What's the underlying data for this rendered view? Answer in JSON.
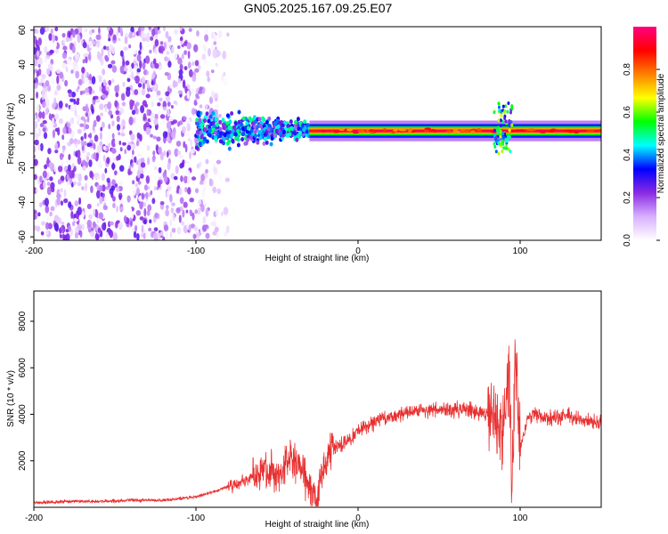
{
  "title": "GN05.2025.167.09.25.E07",
  "chart_data": [
    {
      "type": "heatmap",
      "xlabel": "Height of straight line (km)",
      "ylabel": "Frequency (Hz)",
      "xlim": [
        -200,
        150
      ],
      "ylim": [
        -62,
        62
      ],
      "xticks": [
        -200,
        -100,
        0,
        100
      ],
      "yticks": [
        -60,
        -40,
        -20,
        0,
        20,
        40,
        60
      ],
      "colorbar": {
        "label": "Normalized spectral amplitude",
        "range": [
          0,
          1
        ],
        "ticks": [
          "0.0",
          "0.2",
          "0.4",
          "0.6",
          "0.8"
        ],
        "colormap": [
          "#ffffff",
          "#d8b0ff",
          "#8a2be2",
          "#0000ff",
          "#00ffff",
          "#00ff00",
          "#ffff00",
          "#ff8000",
          "#ff0000",
          "#ff0080"
        ]
      },
      "features": [
        {
          "region": "noise",
          "x_range": [
            -200,
            -80
          ],
          "freq_range": [
            -62,
            62
          ],
          "amplitude": 0.12
        },
        {
          "region": "tone-start",
          "x_range": [
            -100,
            -30
          ],
          "freq_center": 2,
          "freq_spread": 8,
          "amplitude": 0.4
        },
        {
          "region": "tone",
          "x_range": [
            -30,
            150
          ],
          "freq_center": 1.5,
          "freq_spread": 2,
          "amplitude": 0.95
        },
        {
          "region": "spike",
          "x_range": [
            84,
            95
          ],
          "freq_range": [
            -12,
            18
          ],
          "amplitude": 0.45
        }
      ]
    },
    {
      "type": "line",
      "xlabel": "Height of straight line (km)",
      "ylabel": "SNR (10 * v/v)",
      "xlim": [
        -200,
        150
      ],
      "ylim": [
        0,
        9300
      ],
      "xticks": [
        -200,
        -100,
        0,
        100
      ],
      "yticks": [
        2000,
        4000,
        6000,
        8000
      ],
      "color": "#e83030",
      "series": [
        {
          "x": [
            -200,
            -180,
            -160,
            -140,
            -120,
            -100,
            -90,
            -80,
            -70,
            -65,
            -60,
            -55,
            -50,
            -45,
            -40,
            -35,
            -30,
            -25,
            -20,
            -15,
            -10,
            -5,
            0,
            10,
            20,
            30,
            40,
            50,
            60,
            70,
            80,
            85,
            90,
            93,
            95,
            97,
            100,
            105,
            110,
            120,
            130,
            140,
            150
          ],
          "y": [
            200,
            250,
            250,
            300,
            300,
            450,
            650,
            900,
            1100,
            1300,
            1550,
            1600,
            1400,
            1700,
            2000,
            1600,
            800,
            300,
            2100,
            2500,
            2700,
            2900,
            3300,
            3700,
            3900,
            4100,
            4200,
            4150,
            4200,
            4200,
            4050,
            3800,
            3500,
            6000,
            400,
            6500,
            2500,
            3900,
            4000,
            3800,
            3950,
            3700,
            3600
          ]
        }
      ]
    }
  ]
}
